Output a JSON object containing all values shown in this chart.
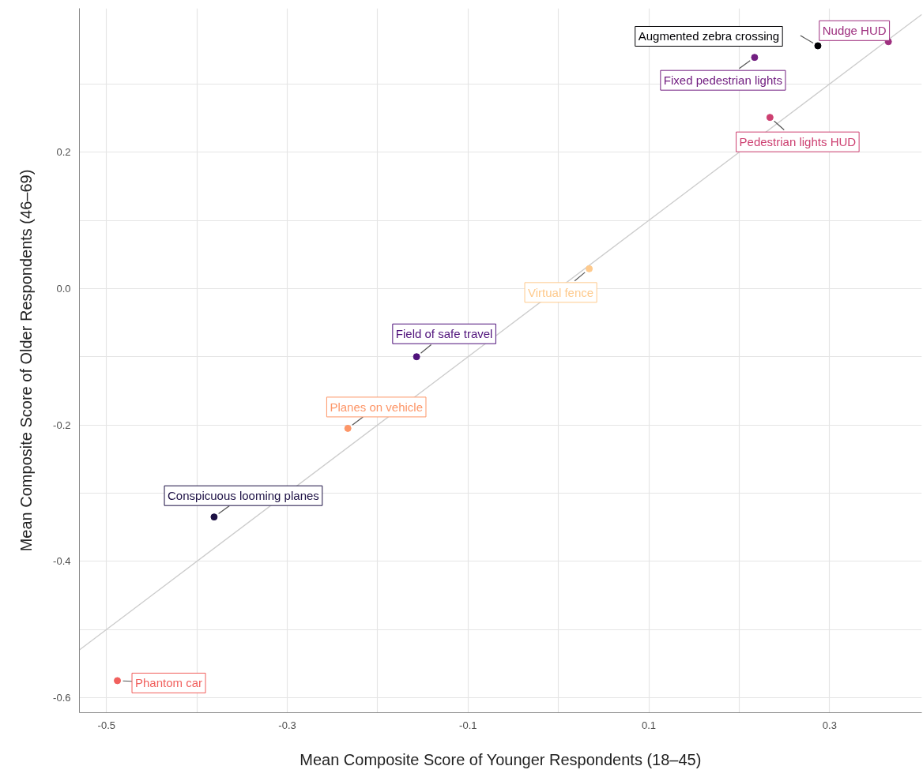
{
  "chart_data": {
    "type": "scatter",
    "xlabel": "Mean Composite Score of Younger Respondents (18–45)",
    "ylabel": "Mean Composite Score of Older Respondents (46–69)",
    "xlim": [
      -0.53,
      0.402
    ],
    "ylim": [
      -0.622,
      0.411
    ],
    "xticks": [
      -0.5,
      {
        "value": -0.4,
        "label": null
      },
      -0.3,
      {
        "value": -0.2,
        "label": null
      },
      -0.1,
      {
        "value": 0,
        "label": null
      },
      0.1,
      {
        "value": 0.2,
        "label": null
      },
      0.3
    ],
    "yticks": [
      {
        "value": -0.6,
        "label": "-0.6"
      },
      {
        "value": -0.5,
        "label": null
      },
      {
        "value": -0.4,
        "label": "-0.4"
      },
      {
        "value": -0.3,
        "label": null
      },
      {
        "value": -0.2,
        "label": "-0.2"
      },
      {
        "value": -0.1,
        "label": null
      },
      {
        "value": 0,
        "label": "0.0"
      },
      {
        "value": 0.1,
        "label": null
      },
      {
        "value": 0.2,
        "label": "0.2"
      },
      {
        "value": 0.3,
        "label": null
      }
    ],
    "grid": true,
    "marker": "circle",
    "series": [
      {
        "type": "line",
        "marker": "none",
        "color": "#cccccc",
        "x": [
          -0.53,
          0.402
        ],
        "values": [
          -0.53,
          0.402
        ]
      },
      {
        "name": "Phantom car",
        "color": "#f1605d",
        "x": [
          -0.488
        ],
        "values": [
          -0.575
        ]
      },
      {
        "name": "Conspicuous looming planes",
        "color": "#1c1044",
        "x": [
          -0.381
        ],
        "values": [
          -0.335
        ]
      },
      {
        "name": "Planes on vehicle",
        "color": "#fd9668",
        "x": [
          -0.233
        ],
        "values": [
          -0.205
        ]
      },
      {
        "name": "Field of safe travel",
        "color": "#4f127b",
        "x": [
          -0.157
        ],
        "values": [
          -0.1
        ]
      },
      {
        "name": "Virtual fence",
        "color": "#feca8d",
        "x": [
          0.034
        ],
        "values": [
          0.029
        ]
      },
      {
        "name": "Fixed pedestrian lights",
        "color": "#721f81",
        "x": [
          0.217
        ],
        "values": [
          0.339
        ]
      },
      {
        "name": "Pedestrian lights HUD",
        "color": "#cd4071",
        "x": [
          0.234
        ],
        "values": [
          0.251
        ]
      },
      {
        "name": "Augmented zebra crossing",
        "color": "#000004",
        "x": [
          0.287
        ],
        "values": [
          0.356
        ]
      },
      {
        "name": "Nudge HUD",
        "color": "#9e2f7f",
        "x": [
          0.365
        ],
        "values": [
          0.362
        ]
      }
    ]
  }
}
